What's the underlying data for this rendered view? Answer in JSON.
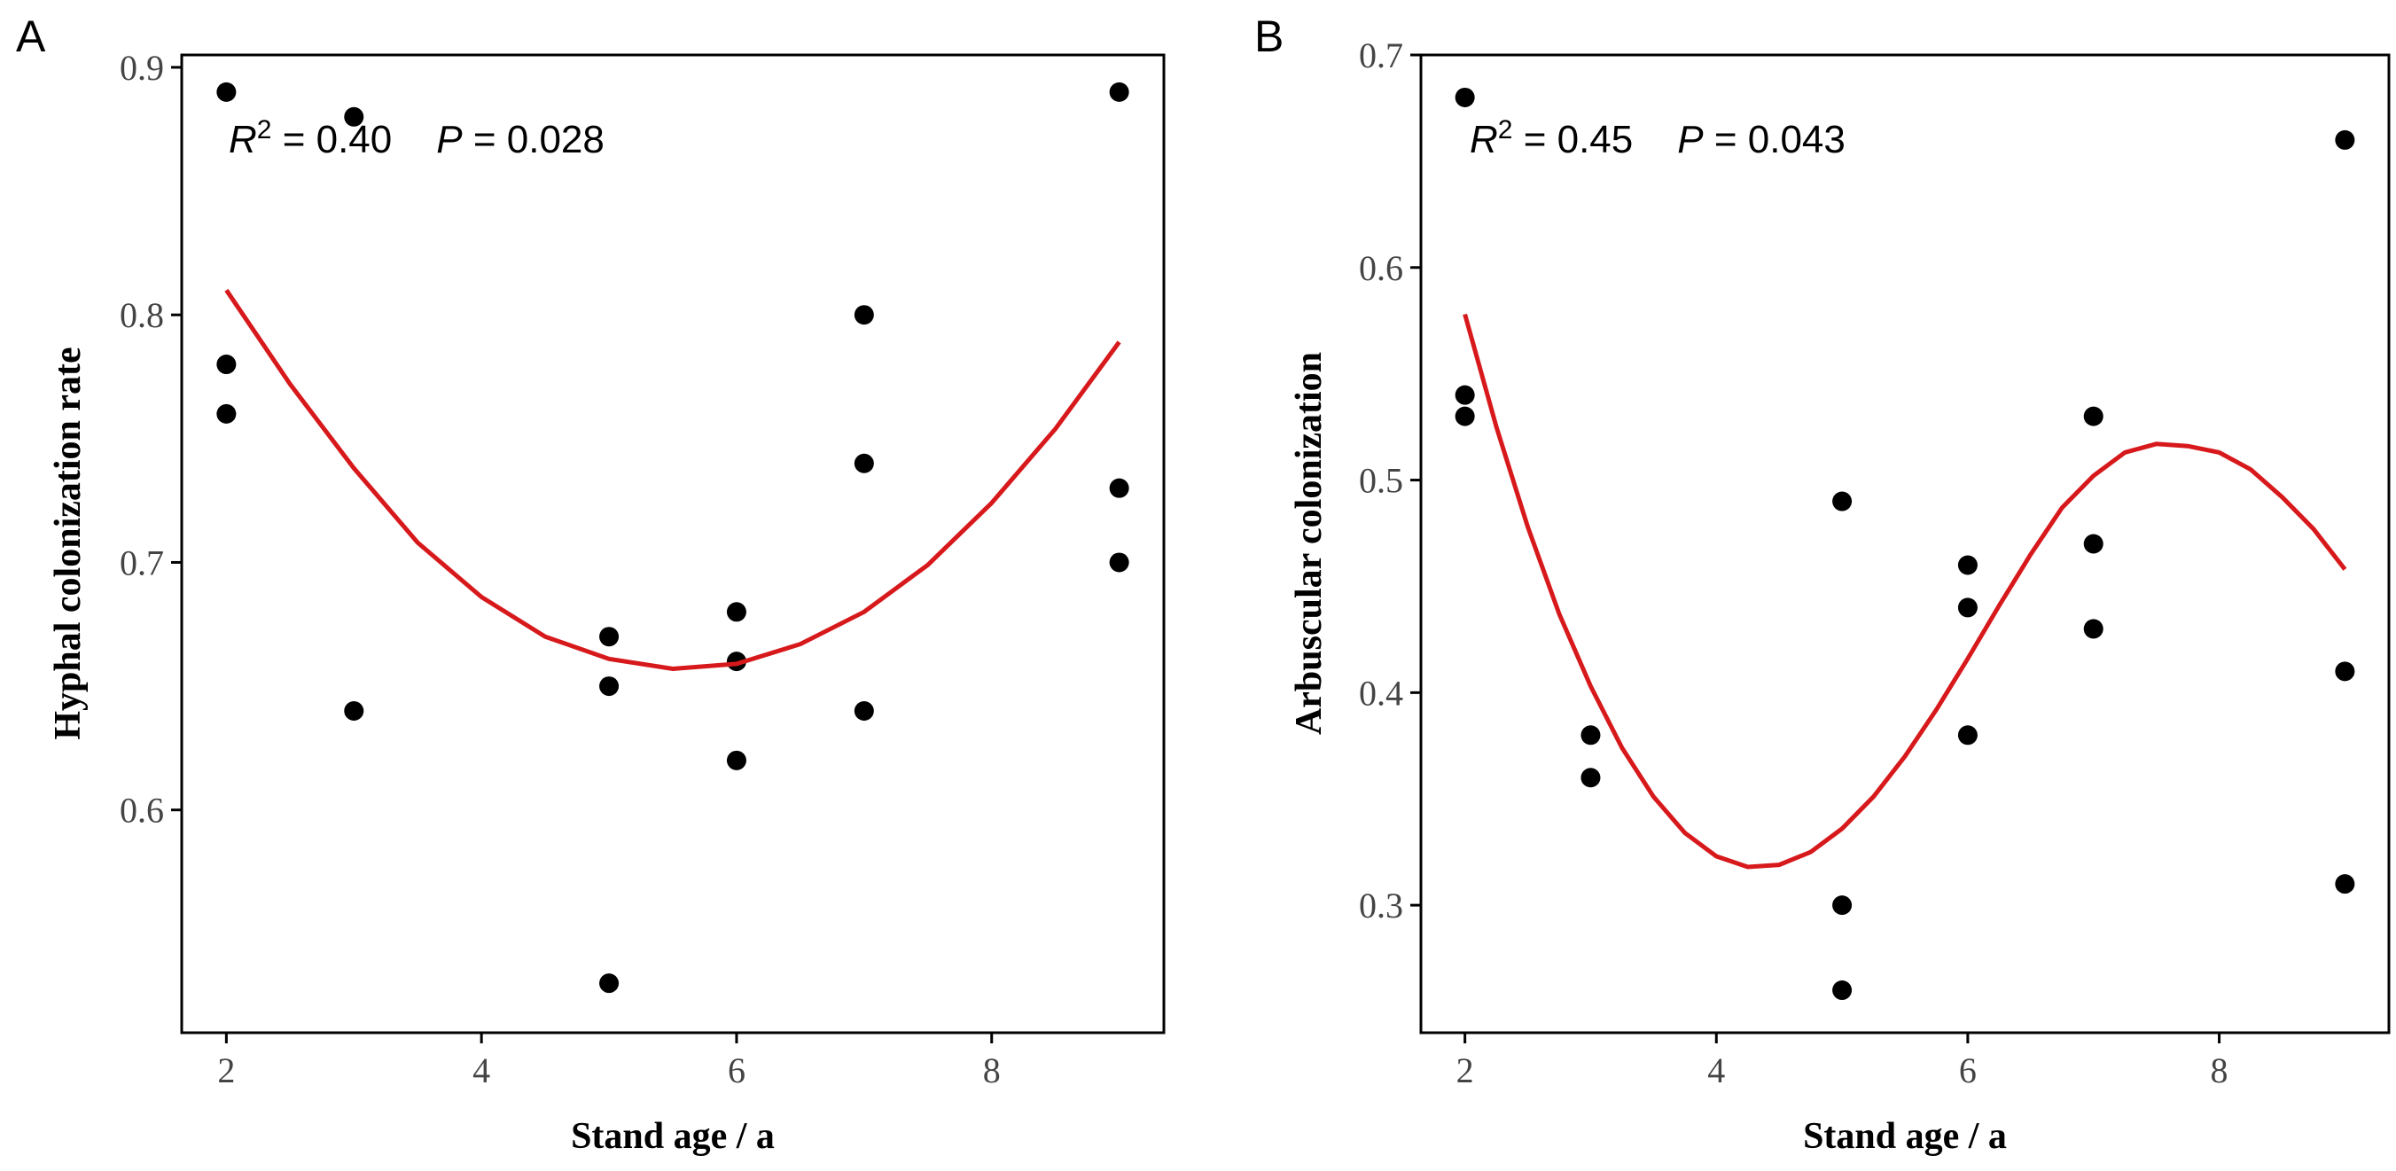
{
  "chart_data": [
    {
      "panel": "A",
      "type": "scatter",
      "title": "",
      "xlabel": "Stand age / a",
      "ylabel": "Hyphal colonization rate",
      "xlim": [
        1.65,
        9.35
      ],
      "ylim": [
        0.51,
        0.905
      ],
      "xticks": [
        2,
        4,
        6,
        8
      ],
      "xtick_labels": [
        "2",
        "4",
        "6",
        "8"
      ],
      "yticks": [
        0.6,
        0.7,
        0.8,
        0.9
      ],
      "ytick_labels": [
        "0.6",
        "0.7",
        "0.8",
        "0.9"
      ],
      "grid": false,
      "points": [
        {
          "x": 2,
          "y": 0.89
        },
        {
          "x": 2,
          "y": 0.78
        },
        {
          "x": 2,
          "y": 0.76
        },
        {
          "x": 3,
          "y": 0.88
        },
        {
          "x": 3,
          "y": 0.64
        },
        {
          "x": 5,
          "y": 0.67
        },
        {
          "x": 5,
          "y": 0.65
        },
        {
          "x": 5,
          "y": 0.53
        },
        {
          "x": 6,
          "y": 0.68
        },
        {
          "x": 6,
          "y": 0.66
        },
        {
          "x": 6,
          "y": 0.62
        },
        {
          "x": 7,
          "y": 0.8
        },
        {
          "x": 7,
          "y": 0.74
        },
        {
          "x": 7,
          "y": 0.64
        },
        {
          "x": 9,
          "y": 0.89
        },
        {
          "x": 9,
          "y": 0.73
        },
        {
          "x": 9,
          "y": 0.7
        }
      ],
      "fit": {
        "x": [
          2,
          2.5,
          3,
          3.5,
          4,
          4.5,
          5,
          5.5,
          6,
          6.5,
          7,
          7.5,
          8,
          8.5,
          9
        ],
        "y": [
          0.81,
          0.772,
          0.738,
          0.708,
          0.686,
          0.67,
          0.661,
          0.657,
          0.659,
          0.667,
          0.68,
          0.699,
          0.724,
          0.754,
          0.789
        ]
      },
      "stats": {
        "r2_symbol": "R",
        "r2_sup": "2",
        "r2_value": " = 0.40",
        "p_symbol": "P",
        "p_value": " = 0.028"
      }
    },
    {
      "panel": "B",
      "type": "scatter",
      "title": "",
      "xlabel": "Stand age / a",
      "ylabel": "Arbuscular colonization",
      "xlim": [
        1.65,
        9.35
      ],
      "ylim": [
        0.24,
        0.7
      ],
      "xticks": [
        2,
        4,
        6,
        8
      ],
      "xtick_labels": [
        "2",
        "4",
        "6",
        "8"
      ],
      "yticks": [
        0.3,
        0.4,
        0.5,
        0.6,
        0.7
      ],
      "ytick_labels": [
        "0.3",
        "0.4",
        "0.5",
        "0.6",
        "0.7"
      ],
      "grid": false,
      "points": [
        {
          "x": 2,
          "y": 0.68
        },
        {
          "x": 2,
          "y": 0.54
        },
        {
          "x": 2,
          "y": 0.53
        },
        {
          "x": 3,
          "y": 0.38
        },
        {
          "x": 3,
          "y": 0.36
        },
        {
          "x": 5,
          "y": 0.49
        },
        {
          "x": 5,
          "y": 0.3
        },
        {
          "x": 5,
          "y": 0.26
        },
        {
          "x": 6,
          "y": 0.46
        },
        {
          "x": 6,
          "y": 0.44
        },
        {
          "x": 6,
          "y": 0.38
        },
        {
          "x": 7,
          "y": 0.53
        },
        {
          "x": 7,
          "y": 0.47
        },
        {
          "x": 7,
          "y": 0.43
        },
        {
          "x": 9,
          "y": 0.66
        },
        {
          "x": 9,
          "y": 0.41
        },
        {
          "x": 9,
          "y": 0.31
        }
      ],
      "fit": {
        "x": [
          2,
          2.25,
          2.5,
          2.75,
          3,
          3.25,
          3.5,
          3.75,
          4,
          4.25,
          4.5,
          4.75,
          5,
          5.25,
          5.5,
          5.75,
          6,
          6.25,
          6.5,
          6.75,
          7,
          7.25,
          7.5,
          7.75,
          8,
          8.25,
          8.5,
          8.75,
          9
        ],
        "y": [
          0.578,
          0.525,
          0.478,
          0.437,
          0.403,
          0.374,
          0.351,
          0.334,
          0.323,
          0.318,
          0.319,
          0.325,
          0.336,
          0.351,
          0.37,
          0.392,
          0.416,
          0.441,
          0.465,
          0.487,
          0.502,
          0.513,
          0.517,
          0.516,
          0.513,
          0.505,
          0.492,
          0.477,
          0.458
        ]
      },
      "stats": {
        "r2_symbol": "R",
        "r2_sup": "2",
        "r2_value": " = 0.45",
        "p_symbol": "P",
        "p_value": " = 0.043"
      }
    }
  ],
  "colors": {
    "fit_line": "#d7191c",
    "points": "#000000",
    "tick_labels": "#444444"
  }
}
